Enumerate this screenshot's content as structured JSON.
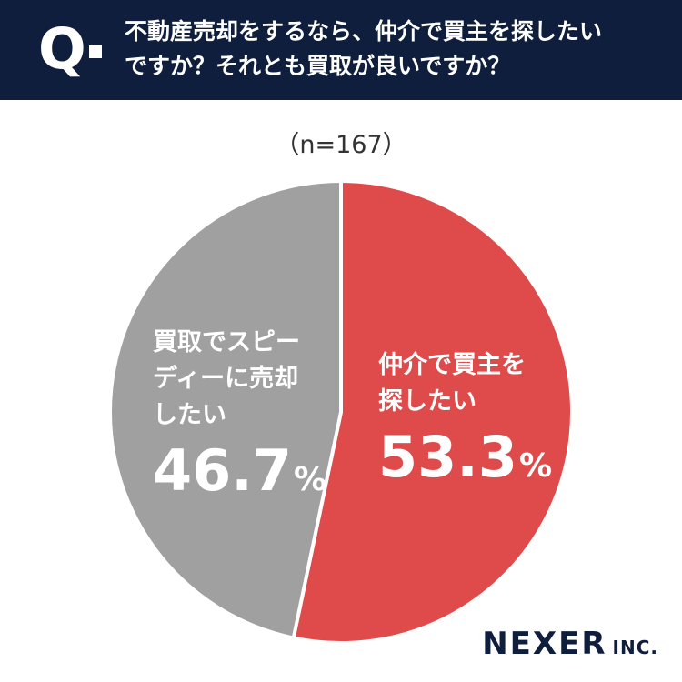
{
  "header": {
    "mark": "Q",
    "question_line1": "不動産売却をするなら、仲介で買主を探したい",
    "question_line2": "ですか？それとも買取が良いですか？"
  },
  "sample_size": "（n=167）",
  "chart_data": {
    "type": "pie",
    "title": "",
    "slices": [
      {
        "label": "仲介で買主を探したい",
        "value": 53.3,
        "color": "#df4a4a"
      },
      {
        "label": "買取でスピーディーに売却したい",
        "value": 46.7,
        "color": "#a0a0a0"
      }
    ],
    "unit": "%"
  },
  "labels": {
    "right_line1": "仲介で買主を",
    "right_line2": "探したい",
    "right_value": "53.3",
    "left_line1": "買取でスピー",
    "left_line2": "ディーに売却",
    "left_line3": "したい",
    "left_value": "46.7",
    "percent_sign": "%"
  },
  "logo": {
    "name": "NEXER",
    "suffix": "INC."
  }
}
